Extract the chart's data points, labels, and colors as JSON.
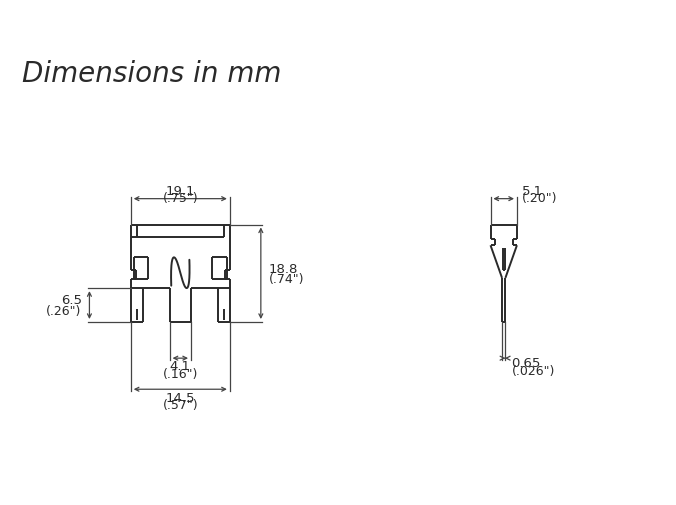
{
  "title": "Dimensions in mm",
  "title_fontsize": 20,
  "title_color": "#2a2a2a",
  "bg_color": "#ffffff",
  "line_color": "#2a2a2a",
  "dim_color": "#444444",
  "text_color": "#2a2a2a",
  "lw": 1.4,
  "dlw": 0.9,
  "fs": 9.5,
  "dims": {
    "top_w_mm": "19.1",
    "top_w_in": "(.75\")",
    "height_mm": "18.8",
    "height_in": "(.74\")",
    "tab_h_mm": "6.5",
    "tab_h_in": "(.26\")",
    "gap_mm": "4.1",
    "gap_in": "(.16\")",
    "bot_w_mm": "14.5",
    "bot_w_in": "(.57\")",
    "pin_top_mm": "5.1",
    "pin_top_in": "(.20\")",
    "pin_bot_mm": "0.65",
    "pin_bot_in": "(.026\")"
  }
}
